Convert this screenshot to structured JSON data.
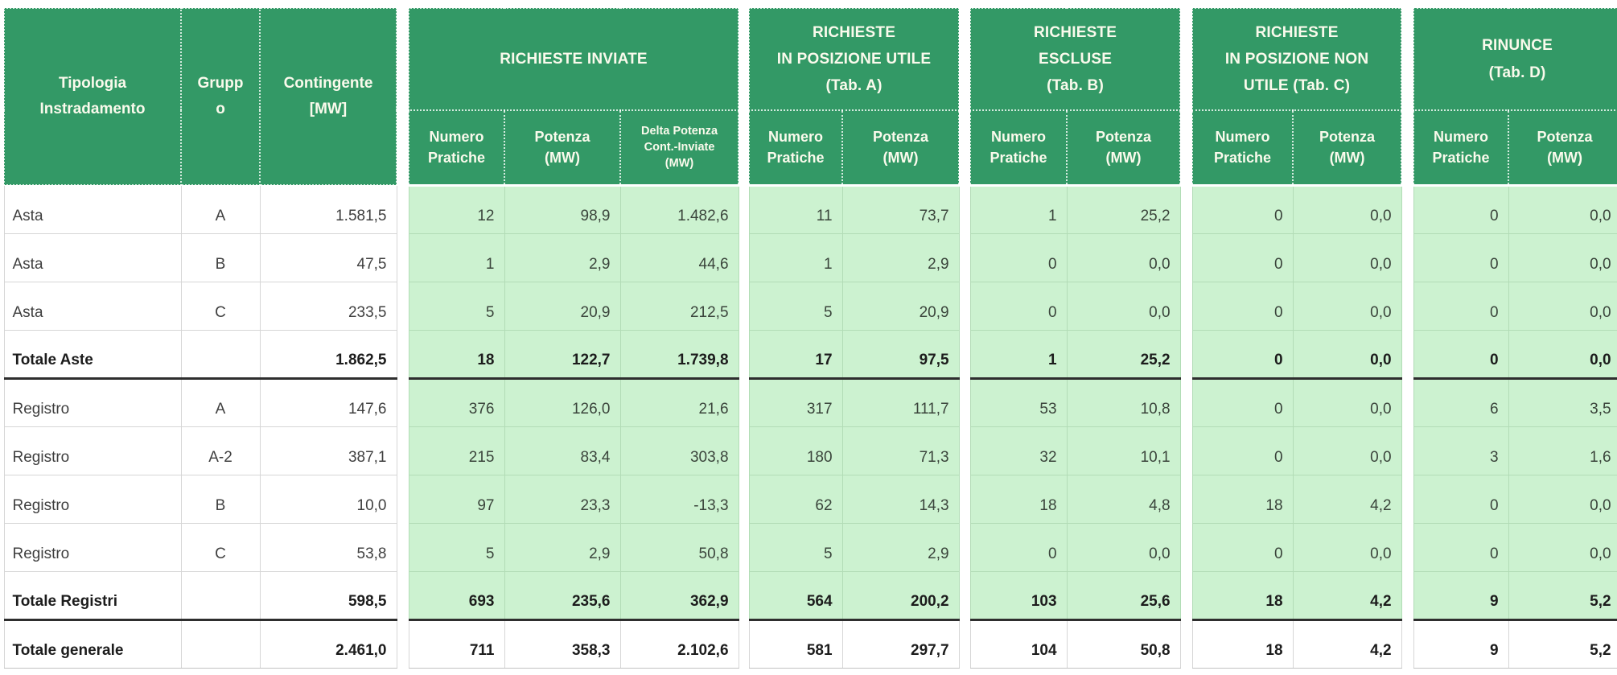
{
  "table": {
    "left_columns": [
      {
        "label": "Tipologia\nInstradamento"
      },
      {
        "label": "Gruppo"
      },
      {
        "label": "Contingente\n[MW]"
      }
    ],
    "groups": [
      {
        "title": "RICHIESTE INVIATE",
        "columns": [
          {
            "label": "Numero\nPratiche"
          },
          {
            "label": "Potenza\n(MW)"
          },
          {
            "label": "Delta Potenza\nCont.-Inviate\n(MW)",
            "small": true
          }
        ]
      },
      {
        "title": "RICHIESTE\nIN POSIZIONE UTILE\n(Tab. A)",
        "columns": [
          {
            "label": "Numero\nPratiche"
          },
          {
            "label": "Potenza\n(MW)"
          }
        ]
      },
      {
        "title": "RICHIESTE\nESCLUSE\n(Tab. B)",
        "columns": [
          {
            "label": "Numero\nPratiche"
          },
          {
            "label": "Potenza\n(MW)"
          }
        ]
      },
      {
        "title": "RICHIESTE\nIN POSIZIONE NON\nUTILE (Tab. C)",
        "columns": [
          {
            "label": "Numero\nPratiche"
          },
          {
            "label": "Potenza\n(MW)"
          }
        ]
      },
      {
        "title": "RINUNCE\n(Tab. D)",
        "columns": [
          {
            "label": "Numero\nPratiche"
          },
          {
            "label": "Potenza\n(MW)"
          }
        ]
      }
    ],
    "rows": [
      {
        "tipologia": "Asta",
        "gruppo": "A",
        "contingente": "1.581,5",
        "values": [
          "12",
          "98,9",
          "1.482,6",
          "11",
          "73,7",
          "1",
          "25,2",
          "0",
          "0,0",
          "0",
          "0,0"
        ],
        "style": "normal"
      },
      {
        "tipologia": "Asta",
        "gruppo": "B",
        "contingente": "47,5",
        "values": [
          "1",
          "2,9",
          "44,6",
          "1",
          "2,9",
          "0",
          "0,0",
          "0",
          "0,0",
          "0",
          "0,0"
        ],
        "style": "normal"
      },
      {
        "tipologia": "Asta",
        "gruppo": "C",
        "contingente": "233,5",
        "values": [
          "5",
          "20,9",
          "212,5",
          "5",
          "20,9",
          "0",
          "0,0",
          "0",
          "0,0",
          "0",
          "0,0"
        ],
        "style": "normal"
      },
      {
        "tipologia": "Totale Aste",
        "gruppo": "",
        "contingente": "1.862,5",
        "values": [
          "18",
          "122,7",
          "1.739,8",
          "17",
          "97,5",
          "1",
          "25,2",
          "0",
          "0,0",
          "0",
          "0,0"
        ],
        "style": "total"
      },
      {
        "tipologia": "Registro",
        "gruppo": "A",
        "contingente": "147,6",
        "values": [
          "376",
          "126,0",
          "21,6",
          "317",
          "111,7",
          "53",
          "10,8",
          "0",
          "0,0",
          "6",
          "3,5"
        ],
        "style": "normal"
      },
      {
        "tipologia": "Registro",
        "gruppo": "A-2",
        "contingente": "387,1",
        "values": [
          "215",
          "83,4",
          "303,8",
          "180",
          "71,3",
          "32",
          "10,1",
          "0",
          "0,0",
          "3",
          "1,6"
        ],
        "style": "normal"
      },
      {
        "tipologia": "Registro",
        "gruppo": "B",
        "contingente": "10,0",
        "values": [
          "97",
          "23,3",
          "-13,3",
          "62",
          "14,3",
          "18",
          "4,8",
          "18",
          "4,2",
          "0",
          "0,0"
        ],
        "style": "normal"
      },
      {
        "tipologia": "Registro",
        "gruppo": "C",
        "contingente": "53,8",
        "values": [
          "5",
          "2,9",
          "50,8",
          "5",
          "2,9",
          "0",
          "0,0",
          "0",
          "0,0",
          "0",
          "0,0"
        ],
        "style": "normal"
      },
      {
        "tipologia": "Totale Registri",
        "gruppo": "",
        "contingente": "598,5",
        "values": [
          "693",
          "235,6",
          "362,9",
          "564",
          "200,2",
          "103",
          "25,6",
          "18",
          "4,2",
          "9",
          "5,2"
        ],
        "style": "total"
      },
      {
        "tipologia": "Totale generale",
        "gruppo": "",
        "contingente": "2.461,0",
        "values": [
          "711",
          "358,3",
          "2.102,6",
          "581",
          "297,7",
          "104",
          "50,8",
          "18",
          "4,2",
          "9",
          "5,2"
        ],
        "style": "grand"
      }
    ],
    "colors": {
      "header_green": "#339966",
      "cell_green": "#ccf2d0",
      "header_text": "#fafaec"
    }
  }
}
